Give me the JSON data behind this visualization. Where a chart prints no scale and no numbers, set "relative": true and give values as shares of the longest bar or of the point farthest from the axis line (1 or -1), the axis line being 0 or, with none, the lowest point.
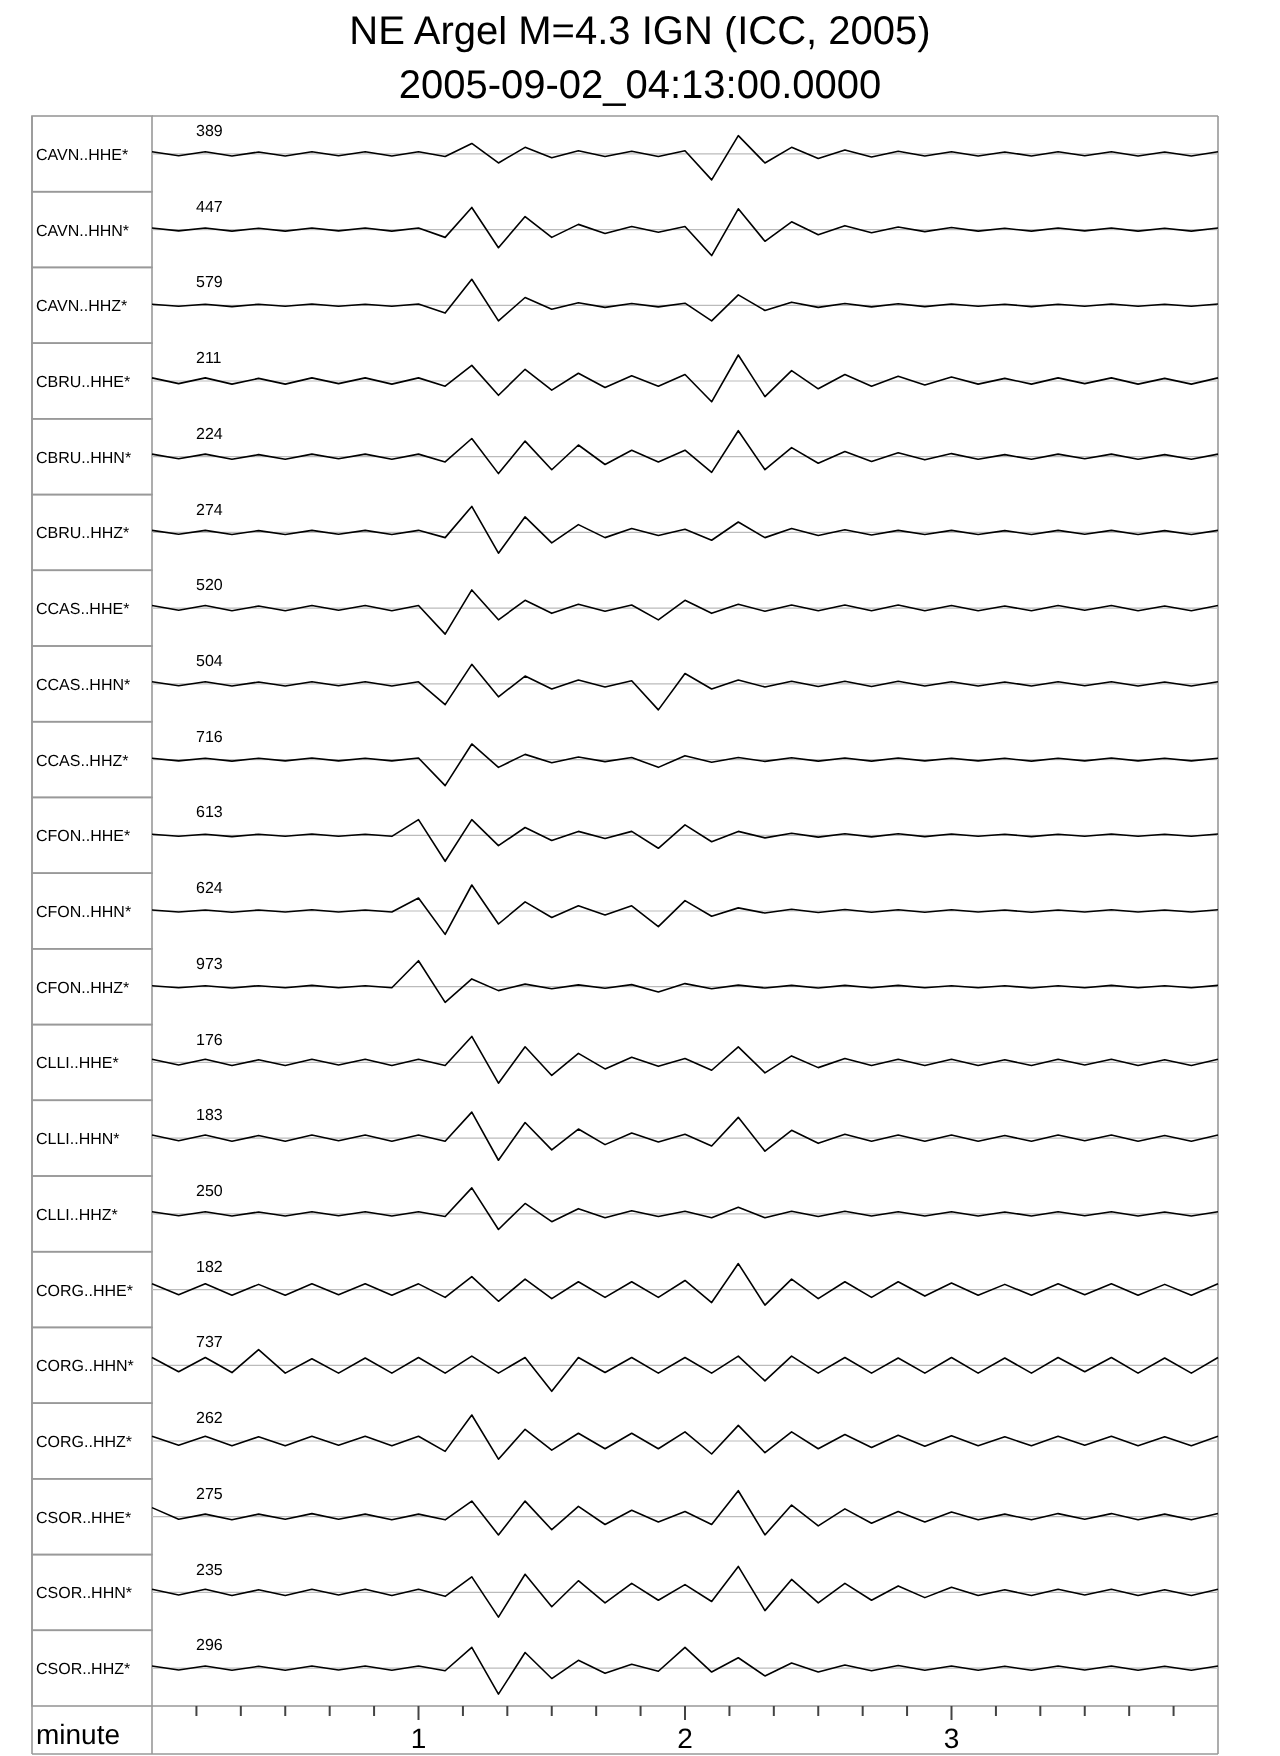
{
  "chart_data": [
    {
      "type": "line",
      "title": "NE Argel M=4.3 IGN (ICC, 2005)",
      "subtitle": "2005-09-02_04:13:00.0000",
      "relative": true,
      "ylabel": "CAVN..HHE*",
      "annotations": [
        "389"
      ],
      "xlim": [
        0,
        4
      ],
      "tick_labels": false,
      "x": [
        0,
        0.1,
        0.2,
        0.3,
        0.4,
        0.5,
        0.6,
        0.7,
        0.8,
        0.9,
        1,
        1.1,
        1.2,
        1.3,
        1.4,
        1.5,
        1.6,
        1.7,
        1.8,
        1.9,
        2,
        2.1,
        2.2,
        2.3,
        2.4,
        2.5,
        2.6,
        2.7,
        2.8,
        2.9,
        3,
        3.1,
        3.2,
        3.3,
        3.4,
        3.5,
        3.6,
        3.7,
        3.8,
        3.9,
        4
      ],
      "series": [
        {
          "color": "#000000",
          "values": [
            0.08,
            -0.07,
            0.08,
            -0.08,
            0.07,
            -0.08,
            0.08,
            -0.07,
            0.08,
            -0.08,
            0.08,
            -0.1,
            0.4,
            -0.35,
            0.25,
            -0.15,
            0.12,
            -0.1,
            0.1,
            -0.1,
            0.12,
            -1,
            0.7,
            -0.35,
            0.25,
            -0.18,
            0.15,
            -0.12,
            0.1,
            -0.08,
            0.08,
            -0.08,
            0.07,
            -0.08,
            0.08,
            -0.07,
            0.08,
            -0.08,
            0.07,
            -0.08,
            0.08
          ]
        }
      ]
    },
    {
      "type": "line",
      "relative": true,
      "ylabel": "CAVN..HHN*",
      "annotations": [
        "447"
      ],
      "xlim": [
        0,
        4
      ],
      "tick_labels": false,
      "x": [
        0,
        0.1,
        0.2,
        0.3,
        0.4,
        0.5,
        0.6,
        0.7,
        0.8,
        0.9,
        1,
        1.1,
        1.2,
        1.3,
        1.4,
        1.5,
        1.6,
        1.7,
        1.8,
        1.9,
        2,
        2.1,
        2.2,
        2.3,
        2.4,
        2.5,
        2.6,
        2.7,
        2.8,
        2.9,
        3,
        3.1,
        3.2,
        3.3,
        3.4,
        3.5,
        3.6,
        3.7,
        3.8,
        3.9,
        4
      ],
      "series": [
        {
          "color": "#000000",
          "values": [
            0.06,
            -0.05,
            0.06,
            -0.06,
            0.05,
            -0.06,
            0.06,
            -0.05,
            0.06,
            -0.06,
            0.06,
            -0.3,
            0.85,
            -0.7,
            0.5,
            -0.3,
            0.2,
            -0.15,
            0.12,
            -0.1,
            0.12,
            -1,
            0.8,
            -0.45,
            0.3,
            -0.2,
            0.15,
            -0.12,
            0.1,
            -0.08,
            0.08,
            -0.06,
            0.05,
            -0.06,
            0.06,
            -0.05,
            0.06,
            -0.06,
            0.05,
            -0.06,
            0.06
          ]
        }
      ]
    },
    {
      "type": "line",
      "relative": true,
      "ylabel": "CAVN..HHZ*",
      "annotations": [
        "579"
      ],
      "xlim": [
        0,
        4
      ],
      "tick_labels": false,
      "x": [
        0,
        0.1,
        0.2,
        0.3,
        0.4,
        0.5,
        0.6,
        0.7,
        0.8,
        0.9,
        1,
        1.1,
        1.2,
        1.3,
        1.4,
        1.5,
        1.6,
        1.7,
        1.8,
        1.9,
        2,
        2.1,
        2.2,
        2.3,
        2.4,
        2.5,
        2.6,
        2.7,
        2.8,
        2.9,
        3,
        3.1,
        3.2,
        3.3,
        3.4,
        3.5,
        3.6,
        3.7,
        3.8,
        3.9,
        4
      ],
      "series": [
        {
          "color": "#000000",
          "values": [
            0.04,
            -0.04,
            0.04,
            -0.05,
            0.04,
            -0.04,
            0.05,
            -0.04,
            0.04,
            -0.04,
            0.05,
            -0.3,
            1,
            -0.6,
            0.3,
            -0.15,
            0.1,
            -0.08,
            0.07,
            -0.06,
            0.08,
            -0.6,
            0.4,
            -0.2,
            0.12,
            -0.08,
            0.07,
            -0.06,
            0.06,
            -0.05,
            0.05,
            -0.04,
            0.04,
            -0.05,
            0.04,
            -0.04,
            0.05,
            -0.04,
            0.04,
            -0.04,
            0.05
          ]
        }
      ]
    },
    {
      "type": "line",
      "relative": true,
      "ylabel": "CBRU..HHE*",
      "annotations": [
        "211"
      ],
      "xlim": [
        0,
        4
      ],
      "tick_labels": false,
      "x": [
        0,
        0.1,
        0.2,
        0.3,
        0.4,
        0.5,
        0.6,
        0.7,
        0.8,
        0.9,
        1,
        1.1,
        1.2,
        1.3,
        1.4,
        1.5,
        1.6,
        1.7,
        1.8,
        1.9,
        2,
        2.1,
        2.2,
        2.3,
        2.4,
        2.5,
        2.6,
        2.7,
        2.8,
        2.9,
        3,
        3.1,
        3.2,
        3.3,
        3.4,
        3.5,
        3.6,
        3.7,
        3.8,
        3.9,
        4
      ],
      "series": [
        {
          "color": "#000000",
          "values": [
            0.12,
            -0.1,
            0.12,
            -0.12,
            0.1,
            -0.12,
            0.12,
            -0.1,
            0.12,
            -0.12,
            0.12,
            -0.2,
            0.6,
            -0.55,
            0.45,
            -0.35,
            0.3,
            -0.25,
            0.2,
            -0.2,
            0.25,
            -0.8,
            1,
            -0.6,
            0.4,
            -0.3,
            0.25,
            -0.2,
            0.18,
            -0.15,
            0.15,
            -0.12,
            0.1,
            -0.12,
            0.12,
            -0.1,
            0.12,
            -0.12,
            0.1,
            -0.12,
            0.12
          ]
        }
      ]
    },
    {
      "type": "line",
      "relative": true,
      "ylabel": "CBRU..HHN*",
      "annotations": [
        "224"
      ],
      "xlim": [
        0,
        4
      ],
      "tick_labels": false,
      "x": [
        0,
        0.1,
        0.2,
        0.3,
        0.4,
        0.5,
        0.6,
        0.7,
        0.8,
        0.9,
        1,
        1.1,
        1.2,
        1.3,
        1.4,
        1.5,
        1.6,
        1.7,
        1.8,
        1.9,
        2,
        2.1,
        2.2,
        2.3,
        2.4,
        2.5,
        2.6,
        2.7,
        2.8,
        2.9,
        3,
        3.1,
        3.2,
        3.3,
        3.4,
        3.5,
        3.6,
        3.7,
        3.8,
        3.9,
        4
      ],
      "series": [
        {
          "color": "#000000",
          "values": [
            0.1,
            -0.08,
            0.1,
            -0.1,
            0.08,
            -0.1,
            0.1,
            -0.08,
            0.1,
            -0.1,
            0.1,
            -0.2,
            0.7,
            -0.65,
            0.6,
            -0.5,
            0.45,
            -0.3,
            0.25,
            -0.2,
            0.25,
            -0.6,
            1,
            -0.5,
            0.35,
            -0.25,
            0.2,
            -0.18,
            0.15,
            -0.12,
            0.12,
            -0.1,
            0.08,
            -0.1,
            0.1,
            -0.08,
            0.1,
            -0.1,
            0.08,
            -0.1,
            0.1
          ]
        }
      ]
    },
    {
      "type": "line",
      "relative": true,
      "ylabel": "CBRU..HHZ*",
      "annotations": [
        "274"
      ],
      "xlim": [
        0,
        4
      ],
      "tick_labels": false,
      "x": [
        0,
        0.1,
        0.2,
        0.3,
        0.4,
        0.5,
        0.6,
        0.7,
        0.8,
        0.9,
        1,
        1.1,
        1.2,
        1.3,
        1.4,
        1.5,
        1.6,
        1.7,
        1.8,
        1.9,
        2,
        2.1,
        2.2,
        2.3,
        2.4,
        2.5,
        2.6,
        2.7,
        2.8,
        2.9,
        3,
        3.1,
        3.2,
        3.3,
        3.4,
        3.5,
        3.6,
        3.7,
        3.8,
        3.9,
        4
      ],
      "series": [
        {
          "color": "#000000",
          "values": [
            0.08,
            -0.07,
            0.08,
            -0.08,
            0.07,
            -0.08,
            0.08,
            -0.07,
            0.08,
            -0.08,
            0.08,
            -0.2,
            1,
            -0.8,
            0.6,
            -0.4,
            0.3,
            -0.2,
            0.15,
            -0.12,
            0.12,
            -0.3,
            0.4,
            -0.2,
            0.15,
            -0.12,
            0.1,
            -0.1,
            0.08,
            -0.08,
            0.08,
            -0.08,
            0.07,
            -0.08,
            0.08,
            -0.07,
            0.08,
            -0.08,
            0.07,
            -0.08,
            0.08
          ]
        }
      ]
    },
    {
      "type": "line",
      "relative": true,
      "ylabel": "CCAS..HHE*",
      "annotations": [
        "520"
      ],
      "xlim": [
        0,
        4
      ],
      "tick_labels": false,
      "x": [
        0,
        0.1,
        0.2,
        0.3,
        0.4,
        0.5,
        0.6,
        0.7,
        0.8,
        0.9,
        1,
        1.1,
        1.2,
        1.3,
        1.4,
        1.5,
        1.6,
        1.7,
        1.8,
        1.9,
        2,
        2.1,
        2.2,
        2.3,
        2.4,
        2.5,
        2.6,
        2.7,
        2.8,
        2.9,
        3,
        3.1,
        3.2,
        3.3,
        3.4,
        3.5,
        3.6,
        3.7,
        3.8,
        3.9,
        4
      ],
      "series": [
        {
          "color": "#000000",
          "values": [
            0.1,
            -0.08,
            0.1,
            -0.1,
            0.08,
            -0.1,
            0.1,
            -0.08,
            0.1,
            -0.1,
            0.1,
            -1,
            0.7,
            -0.45,
            0.3,
            -0.2,
            0.15,
            -0.12,
            0.12,
            -0.45,
            0.3,
            -0.2,
            0.15,
            -0.12,
            0.12,
            -0.1,
            0.12,
            -0.1,
            0.12,
            -0.1,
            0.1,
            -0.1,
            0.08,
            -0.1,
            0.1,
            -0.08,
            0.1,
            -0.1,
            0.08,
            -0.1,
            0.1
          ]
        }
      ]
    },
    {
      "type": "line",
      "relative": true,
      "ylabel": "CCAS..HHN*",
      "annotations": [
        "504"
      ],
      "xlim": [
        0,
        4
      ],
      "tick_labels": false,
      "x": [
        0,
        0.1,
        0.2,
        0.3,
        0.4,
        0.5,
        0.6,
        0.7,
        0.8,
        0.9,
        1,
        1.1,
        1.2,
        1.3,
        1.4,
        1.5,
        1.6,
        1.7,
        1.8,
        1.9,
        2,
        2.1,
        2.2,
        2.3,
        2.4,
        2.5,
        2.6,
        2.7,
        2.8,
        2.9,
        3,
        3.1,
        3.2,
        3.3,
        3.4,
        3.5,
        3.6,
        3.7,
        3.8,
        3.9,
        4
      ],
      "series": [
        {
          "color": "#000000",
          "values": [
            0.08,
            -0.07,
            0.08,
            -0.08,
            0.07,
            -0.08,
            0.08,
            -0.07,
            0.08,
            -0.08,
            0.08,
            -0.8,
            0.75,
            -0.5,
            0.3,
            -0.2,
            0.15,
            -0.12,
            0.12,
            -1,
            0.4,
            -0.2,
            0.15,
            -0.12,
            0.1,
            -0.1,
            0.1,
            -0.1,
            0.1,
            -0.08,
            0.08,
            -0.08,
            0.07,
            -0.08,
            0.08,
            -0.07,
            0.08,
            -0.08,
            0.07,
            -0.08,
            0.08
          ]
        }
      ]
    },
    {
      "type": "line",
      "relative": true,
      "ylabel": "CCAS..HHZ*",
      "annotations": [
        "716"
      ],
      "xlim": [
        0,
        4
      ],
      "tick_labels": false,
      "x": [
        0,
        0.1,
        0.2,
        0.3,
        0.4,
        0.5,
        0.6,
        0.7,
        0.8,
        0.9,
        1,
        1.1,
        1.2,
        1.3,
        1.4,
        1.5,
        1.6,
        1.7,
        1.8,
        1.9,
        2,
        2.1,
        2.2,
        2.3,
        2.4,
        2.5,
        2.6,
        2.7,
        2.8,
        2.9,
        3,
        3.1,
        3.2,
        3.3,
        3.4,
        3.5,
        3.6,
        3.7,
        3.8,
        3.9,
        4
      ],
      "series": [
        {
          "color": "#000000",
          "values": [
            0.05,
            -0.05,
            0.05,
            -0.06,
            0.05,
            -0.05,
            0.06,
            -0.05,
            0.05,
            -0.05,
            0.06,
            -1,
            0.6,
            -0.3,
            0.2,
            -0.12,
            0.1,
            -0.08,
            0.08,
            -0.3,
            0.15,
            -0.1,
            0.08,
            -0.07,
            0.07,
            -0.06,
            0.06,
            -0.06,
            0.06,
            -0.05,
            0.05,
            -0.05,
            0.05,
            -0.06,
            0.05,
            -0.05,
            0.06,
            -0.05,
            0.05,
            -0.05,
            0.05
          ]
        }
      ]
    },
    {
      "type": "line",
      "relative": true,
      "ylabel": "CFON..HHE*",
      "annotations": [
        "613"
      ],
      "xlim": [
        0,
        4
      ],
      "tick_labels": false,
      "x": [
        0,
        0.1,
        0.2,
        0.3,
        0.4,
        0.5,
        0.6,
        0.7,
        0.8,
        0.9,
        1,
        1.1,
        1.2,
        1.3,
        1.4,
        1.5,
        1.6,
        1.7,
        1.8,
        1.9,
        2,
        2.1,
        2.2,
        2.3,
        2.4,
        2.5,
        2.6,
        2.7,
        2.8,
        2.9,
        3,
        3.1,
        3.2,
        3.3,
        3.4,
        3.5,
        3.6,
        3.7,
        3.8,
        3.9,
        4
      ],
      "series": [
        {
          "color": "#000000",
          "values": [
            0.04,
            -0.04,
            0.04,
            -0.05,
            0.04,
            -0.04,
            0.05,
            -0.04,
            0.04,
            -0.04,
            0.6,
            -1,
            0.6,
            -0.4,
            0.3,
            -0.2,
            0.15,
            -0.12,
            0.15,
            -0.5,
            0.4,
            -0.25,
            0.15,
            -0.1,
            0.08,
            -0.07,
            0.06,
            -0.06,
            0.06,
            -0.05,
            0.05,
            -0.04,
            0.04,
            -0.05,
            0.04,
            -0.04,
            0.05,
            -0.04,
            0.04,
            -0.04,
            0.05
          ]
        }
      ]
    },
    {
      "type": "line",
      "relative": true,
      "ylabel": "CFON..HHN*",
      "annotations": [
        "624"
      ],
      "xlim": [
        0,
        4
      ],
      "tick_labels": false,
      "x": [
        0,
        0.1,
        0.2,
        0.3,
        0.4,
        0.5,
        0.6,
        0.7,
        0.8,
        0.9,
        1,
        1.1,
        1.2,
        1.3,
        1.4,
        1.5,
        1.6,
        1.7,
        1.8,
        1.9,
        2,
        2.1,
        2.2,
        2.3,
        2.4,
        2.5,
        2.6,
        2.7,
        2.8,
        2.9,
        3,
        3.1,
        3.2,
        3.3,
        3.4,
        3.5,
        3.6,
        3.7,
        3.8,
        3.9,
        4
      ],
      "series": [
        {
          "color": "#000000",
          "values": [
            0.04,
            -0.04,
            0.04,
            -0.05,
            0.04,
            -0.04,
            0.05,
            -0.04,
            0.04,
            -0.04,
            0.5,
            -0.9,
            1,
            -0.5,
            0.35,
            -0.25,
            0.2,
            -0.15,
            0.2,
            -0.6,
            0.4,
            -0.2,
            0.12,
            -0.08,
            0.07,
            -0.06,
            0.06,
            -0.05,
            0.05,
            -0.05,
            0.05,
            -0.04,
            0.04,
            -0.05,
            0.04,
            -0.04,
            0.05,
            -0.04,
            0.04,
            -0.04,
            0.05
          ]
        }
      ]
    },
    {
      "type": "line",
      "relative": true,
      "ylabel": "CFON..HHZ*",
      "annotations": [
        "973"
      ],
      "xlim": [
        0,
        4
      ],
      "tick_labels": false,
      "x": [
        0,
        0.1,
        0.2,
        0.3,
        0.4,
        0.5,
        0.6,
        0.7,
        0.8,
        0.9,
        1,
        1.1,
        1.2,
        1.3,
        1.4,
        1.5,
        1.6,
        1.7,
        1.8,
        1.9,
        2,
        2.1,
        2.2,
        2.3,
        2.4,
        2.5,
        2.6,
        2.7,
        2.8,
        2.9,
        3,
        3.1,
        3.2,
        3.3,
        3.4,
        3.5,
        3.6,
        3.7,
        3.8,
        3.9,
        4
      ],
      "series": [
        {
          "color": "#000000",
          "values": [
            0.04,
            -0.04,
            0.04,
            -0.05,
            0.04,
            -0.04,
            0.05,
            -0.04,
            0.04,
            -0.04,
            1,
            -0.6,
            0.3,
            -0.15,
            0.1,
            -0.08,
            0.07,
            -0.06,
            0.08,
            -0.2,
            0.12,
            -0.08,
            0.06,
            -0.05,
            0.05,
            -0.05,
            0.05,
            -0.04,
            0.05,
            -0.04,
            0.04,
            -0.04,
            0.04,
            -0.05,
            0.04,
            -0.04,
            0.05,
            -0.04,
            0.04,
            -0.04,
            0.05
          ]
        }
      ]
    },
    {
      "type": "line",
      "relative": true,
      "ylabel": "CLLI..HHE*",
      "annotations": [
        "176"
      ],
      "xlim": [
        0,
        4
      ],
      "tick_labels": false,
      "x": [
        0,
        0.1,
        0.2,
        0.3,
        0.4,
        0.5,
        0.6,
        0.7,
        0.8,
        0.9,
        1,
        1.1,
        1.2,
        1.3,
        1.4,
        1.5,
        1.6,
        1.7,
        1.8,
        1.9,
        2,
        2.1,
        2.2,
        2.3,
        2.4,
        2.5,
        2.6,
        2.7,
        2.8,
        2.9,
        3,
        3.1,
        3.2,
        3.3,
        3.4,
        3.5,
        3.6,
        3.7,
        3.8,
        3.9,
        4
      ],
      "series": [
        {
          "color": "#000000",
          "values": [
            0.12,
            -0.1,
            0.12,
            -0.12,
            0.1,
            -0.12,
            0.12,
            -0.1,
            0.12,
            -0.12,
            0.12,
            -0.12,
            1,
            -0.8,
            0.6,
            -0.5,
            0.35,
            -0.25,
            0.2,
            -0.15,
            0.15,
            -0.3,
            0.6,
            -0.4,
            0.25,
            -0.2,
            0.15,
            -0.12,
            0.12,
            -0.12,
            0.12,
            -0.12,
            0.1,
            -0.12,
            0.12,
            -0.1,
            0.12,
            -0.12,
            0.1,
            -0.12,
            0.12
          ]
        }
      ]
    },
    {
      "type": "line",
      "relative": true,
      "ylabel": "CLLI..HHN*",
      "annotations": [
        "183"
      ],
      "xlim": [
        0,
        4
      ],
      "tick_labels": false,
      "x": [
        0,
        0.1,
        0.2,
        0.3,
        0.4,
        0.5,
        0.6,
        0.7,
        0.8,
        0.9,
        1,
        1.1,
        1.2,
        1.3,
        1.4,
        1.5,
        1.6,
        1.7,
        1.8,
        1.9,
        2,
        2.1,
        2.2,
        2.3,
        2.4,
        2.5,
        2.6,
        2.7,
        2.8,
        2.9,
        3,
        3.1,
        3.2,
        3.3,
        3.4,
        3.5,
        3.6,
        3.7,
        3.8,
        3.9,
        4
      ],
      "series": [
        {
          "color": "#000000",
          "values": [
            0.12,
            -0.1,
            0.12,
            -0.12,
            0.1,
            -0.12,
            0.12,
            -0.1,
            0.12,
            -0.12,
            0.12,
            -0.12,
            1,
            -0.85,
            0.6,
            -0.45,
            0.35,
            -0.25,
            0.2,
            -0.15,
            0.15,
            -0.3,
            0.8,
            -0.5,
            0.3,
            -0.2,
            0.15,
            -0.12,
            0.12,
            -0.12,
            0.12,
            -0.12,
            0.1,
            -0.12,
            0.12,
            -0.1,
            0.12,
            -0.12,
            0.1,
            -0.12,
            0.12
          ]
        }
      ]
    },
    {
      "type": "line",
      "relative": true,
      "ylabel": "CLLI..HHZ*",
      "annotations": [
        "250"
      ],
      "xlim": [
        0,
        4
      ],
      "tick_labels": false,
      "x": [
        0,
        0.1,
        0.2,
        0.3,
        0.4,
        0.5,
        0.6,
        0.7,
        0.8,
        0.9,
        1,
        1.1,
        1.2,
        1.3,
        1.4,
        1.5,
        1.6,
        1.7,
        1.8,
        1.9,
        2,
        2.1,
        2.2,
        2.3,
        2.4,
        2.5,
        2.6,
        2.7,
        2.8,
        2.9,
        3,
        3.1,
        3.2,
        3.3,
        3.4,
        3.5,
        3.6,
        3.7,
        3.8,
        3.9,
        4
      ],
      "series": [
        {
          "color": "#000000",
          "values": [
            0.08,
            -0.07,
            0.08,
            -0.08,
            0.07,
            -0.08,
            0.08,
            -0.07,
            0.08,
            -0.08,
            0.08,
            -0.1,
            1,
            -0.6,
            0.4,
            -0.3,
            0.2,
            -0.15,
            0.12,
            -0.1,
            0.1,
            -0.15,
            0.25,
            -0.15,
            0.1,
            -0.1,
            0.1,
            -0.08,
            0.08,
            -0.08,
            0.08,
            -0.08,
            0.07,
            -0.08,
            0.08,
            -0.07,
            0.08,
            -0.08,
            0.07,
            -0.08,
            0.08
          ]
        }
      ]
    },
    {
      "type": "line",
      "relative": true,
      "ylabel": "CORG..HHE*",
      "annotations": [
        "182"
      ],
      "xlim": [
        0,
        4
      ],
      "tick_labels": false,
      "x": [
        0,
        0.1,
        0.2,
        0.3,
        0.4,
        0.5,
        0.6,
        0.7,
        0.8,
        0.9,
        1,
        1.1,
        1.2,
        1.3,
        1.4,
        1.5,
        1.6,
        1.7,
        1.8,
        1.9,
        2,
        2.1,
        2.2,
        2.3,
        2.4,
        2.5,
        2.6,
        2.7,
        2.8,
        2.9,
        3,
        3.1,
        3.2,
        3.3,
        3.4,
        3.5,
        3.6,
        3.7,
        3.8,
        3.9,
        4
      ],
      "series": [
        {
          "color": "#000000",
          "values": [
            0.22,
            -0.2,
            0.22,
            -0.22,
            0.2,
            -0.22,
            0.22,
            -0.2,
            0.22,
            -0.22,
            0.22,
            -0.3,
            0.5,
            -0.45,
            0.4,
            -0.35,
            0.3,
            -0.3,
            0.3,
            -0.3,
            0.35,
            -0.5,
            1,
            -0.6,
            0.4,
            -0.35,
            0.3,
            -0.3,
            0.3,
            -0.25,
            0.25,
            -0.22,
            0.2,
            -0.22,
            0.22,
            -0.2,
            0.22,
            -0.22,
            0.2,
            -0.22,
            0.22
          ]
        }
      ]
    },
    {
      "type": "line",
      "relative": true,
      "ylabel": "CORG..HHN*",
      "annotations": [
        "737"
      ],
      "xlim": [
        0,
        4
      ],
      "tick_labels": false,
      "x": [
        0,
        0.1,
        0.2,
        0.3,
        0.4,
        0.5,
        0.6,
        0.7,
        0.8,
        0.9,
        1,
        1.1,
        1.2,
        1.3,
        1.4,
        1.5,
        1.6,
        1.7,
        1.8,
        1.9,
        2,
        2.1,
        2.2,
        2.3,
        2.4,
        2.5,
        2.6,
        2.7,
        2.8,
        2.9,
        3,
        3.1,
        3.2,
        3.3,
        3.4,
        3.5,
        3.6,
        3.7,
        3.8,
        3.9,
        4
      ],
      "series": [
        {
          "color": "#000000",
          "values": [
            0.3,
            -0.25,
            0.3,
            -0.28,
            0.6,
            -0.3,
            0.25,
            -0.3,
            0.28,
            -0.3,
            0.3,
            -0.3,
            0.35,
            -0.3,
            0.3,
            -1,
            0.3,
            -0.28,
            0.3,
            -0.3,
            0.3,
            -0.3,
            0.35,
            -0.6,
            0.35,
            -0.3,
            0.3,
            -0.3,
            0.28,
            -0.3,
            0.3,
            -0.3,
            0.28,
            -0.3,
            0.3,
            -0.25,
            0.3,
            -0.3,
            0.28,
            -0.3,
            0.3
          ]
        }
      ]
    },
    {
      "type": "line",
      "relative": true,
      "ylabel": "CORG..HHZ*",
      "annotations": [
        "262"
      ],
      "xlim": [
        0,
        4
      ],
      "tick_labels": false,
      "x": [
        0,
        0.1,
        0.2,
        0.3,
        0.4,
        0.5,
        0.6,
        0.7,
        0.8,
        0.9,
        1,
        1.1,
        1.2,
        1.3,
        1.4,
        1.5,
        1.6,
        1.7,
        1.8,
        1.9,
        2,
        2.1,
        2.2,
        2.3,
        2.4,
        2.5,
        2.6,
        2.7,
        2.8,
        2.9,
        3,
        3.1,
        3.2,
        3.3,
        3.4,
        3.5,
        3.6,
        3.7,
        3.8,
        3.9,
        4
      ],
      "series": [
        {
          "color": "#000000",
          "values": [
            0.18,
            -0.16,
            0.18,
            -0.18,
            0.16,
            -0.18,
            0.18,
            -0.16,
            0.18,
            -0.18,
            0.18,
            -0.4,
            1,
            -0.7,
            0.45,
            -0.35,
            0.3,
            -0.3,
            0.3,
            -0.3,
            0.35,
            -0.5,
            0.6,
            -0.45,
            0.35,
            -0.3,
            0.25,
            -0.25,
            0.22,
            -0.2,
            0.2,
            -0.18,
            0.16,
            -0.18,
            0.18,
            -0.16,
            0.18,
            -0.18,
            0.16,
            -0.18,
            0.18
          ]
        }
      ]
    },
    {
      "type": "line",
      "relative": true,
      "ylabel": "CSOR..HHE*",
      "annotations": [
        "275"
      ],
      "xlim": [
        0,
        4
      ],
      "tick_labels": false,
      "x": [
        0,
        0.1,
        0.2,
        0.3,
        0.4,
        0.5,
        0.6,
        0.7,
        0.8,
        0.9,
        1,
        1.1,
        1.2,
        1.3,
        1.4,
        1.5,
        1.6,
        1.7,
        1.8,
        1.9,
        2,
        2.1,
        2.2,
        2.3,
        2.4,
        2.5,
        2.6,
        2.7,
        2.8,
        2.9,
        3,
        3.1,
        3.2,
        3.3,
        3.4,
        3.5,
        3.6,
        3.7,
        3.8,
        3.9,
        4
      ],
      "series": [
        {
          "color": "#000000",
          "values": [
            0.35,
            -0.1,
            0.1,
            -0.12,
            0.1,
            -0.1,
            0.12,
            -0.1,
            0.1,
            -0.12,
            0.1,
            -0.12,
            0.6,
            -0.7,
            0.6,
            -0.5,
            0.4,
            -0.3,
            0.25,
            -0.2,
            0.2,
            -0.3,
            1,
            -0.7,
            0.45,
            -0.35,
            0.3,
            -0.25,
            0.2,
            -0.2,
            0.18,
            -0.12,
            0.1,
            -0.12,
            0.12,
            -0.1,
            0.12,
            -0.12,
            0.1,
            -0.12,
            0.12
          ]
        }
      ]
    },
    {
      "type": "line",
      "relative": true,
      "ylabel": "CSOR..HHN*",
      "annotations": [
        "235"
      ],
      "xlim": [
        0,
        4
      ],
      "tick_labels": false,
      "x": [
        0,
        0.1,
        0.2,
        0.3,
        0.4,
        0.5,
        0.6,
        0.7,
        0.8,
        0.9,
        1,
        1.1,
        1.2,
        1.3,
        1.4,
        1.5,
        1.6,
        1.7,
        1.8,
        1.9,
        2,
        2.1,
        2.2,
        2.3,
        2.4,
        2.5,
        2.6,
        2.7,
        2.8,
        2.9,
        3,
        3.1,
        3.2,
        3.3,
        3.4,
        3.5,
        3.6,
        3.7,
        3.8,
        3.9,
        4
      ],
      "series": [
        {
          "color": "#000000",
          "values": [
            0.12,
            -0.1,
            0.12,
            -0.12,
            0.1,
            -0.12,
            0.12,
            -0.1,
            0.12,
            -0.12,
            0.12,
            -0.15,
            0.6,
            -0.95,
            0.7,
            -0.55,
            0.45,
            -0.4,
            0.35,
            -0.3,
            0.3,
            -0.35,
            1,
            -0.7,
            0.5,
            -0.4,
            0.35,
            -0.3,
            0.25,
            -0.2,
            0.2,
            -0.12,
            0.1,
            -0.12,
            0.12,
            -0.1,
            0.12,
            -0.12,
            0.1,
            -0.12,
            0.12
          ]
        }
      ]
    },
    {
      "type": "line",
      "relative": true,
      "ylabel": "CSOR..HHZ*",
      "annotations": [
        "296"
      ],
      "xlim": [
        0,
        4
      ],
      "tick_labels": "x",
      "xlabel": "minute",
      "x": [
        0,
        0.1,
        0.2,
        0.3,
        0.4,
        0.5,
        0.6,
        0.7,
        0.8,
        0.9,
        1,
        1.1,
        1.2,
        1.3,
        1.4,
        1.5,
        1.6,
        1.7,
        1.8,
        1.9,
        2,
        2.1,
        2.2,
        2.3,
        2.4,
        2.5,
        2.6,
        2.7,
        2.8,
        2.9,
        3,
        3.1,
        3.2,
        3.3,
        3.4,
        3.5,
        3.6,
        3.7,
        3.8,
        3.9,
        4
      ],
      "xticks": [
        {
          "value": 0.1667,
          "label": null
        },
        {
          "value": 0.3333,
          "label": null
        },
        {
          "value": 0.5,
          "label": null
        },
        {
          "value": 0.6667,
          "label": null
        },
        {
          "value": 0.8333,
          "label": null
        },
        1,
        {
          "value": 1.1667,
          "label": null
        },
        {
          "value": 1.3333,
          "label": null
        },
        {
          "value": 1.5,
          "label": null
        },
        {
          "value": 1.6667,
          "label": null
        },
        {
          "value": 1.8333,
          "label": null
        },
        2,
        {
          "value": 2.1667,
          "label": null
        },
        {
          "value": 2.3333,
          "label": null
        },
        {
          "value": 2.5,
          "label": null
        },
        {
          "value": 2.6667,
          "label": null
        },
        {
          "value": 2.8333,
          "label": null
        },
        3,
        {
          "value": 3.1667,
          "label": null
        },
        {
          "value": 3.3333,
          "label": null
        },
        {
          "value": 3.5,
          "label": null
        },
        {
          "value": 3.6667,
          "label": null
        },
        {
          "value": 3.8333,
          "label": null
        }
      ],
      "series": [
        {
          "color": "#000000",
          "values": [
            0.08,
            -0.07,
            0.08,
            -0.08,
            0.07,
            -0.08,
            0.08,
            -0.07,
            0.08,
            -0.08,
            0.08,
            -0.1,
            0.8,
            -1,
            0.6,
            -0.4,
            0.3,
            -0.2,
            0.15,
            -0.12,
            0.8,
            -0.15,
            0.4,
            -0.3,
            0.2,
            -0.15,
            0.12,
            -0.1,
            0.1,
            -0.08,
            0.08,
            -0.08,
            0.07,
            -0.08,
            0.08,
            -0.07,
            0.08,
            -0.08,
            0.07,
            -0.08,
            0.08
          ]
        }
      ]
    }
  ]
}
